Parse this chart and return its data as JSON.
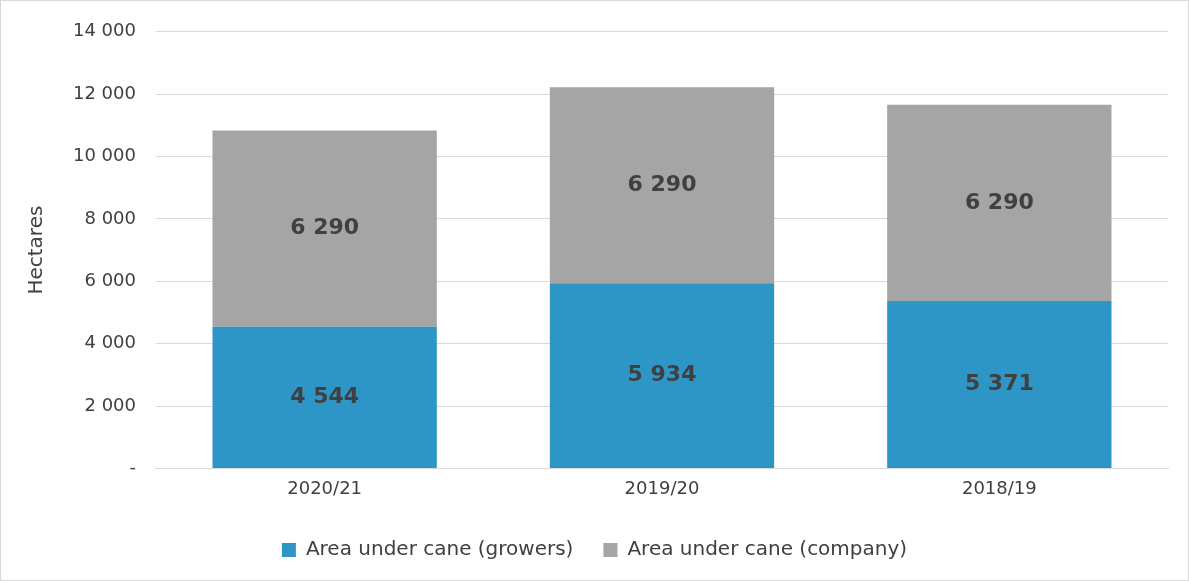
{
  "chart_data": {
    "type": "bar",
    "ylabel": "Hectares",
    "categories": [
      "2020/21",
      "2019/20",
      "2018/19"
    ],
    "series": [
      {
        "name": "Area under cane (growers)",
        "color": "#2e96c6",
        "values": [
          4544,
          5934,
          5371
        ],
        "value_labels": [
          "4 544",
          "5 934",
          "5 371"
        ]
      },
      {
        "name": "Area under cane (company)",
        "color": "#a5a5a5",
        "values": [
          6290,
          6290,
          6290
        ],
        "value_labels": [
          "6 290",
          "6 290",
          "6 290"
        ]
      }
    ],
    "stacked": true,
    "ylim": [
      0,
      14000
    ],
    "yticks": [
      {
        "value": 0,
        "label": "-"
      },
      {
        "value": 2000,
        "label": "2 000"
      },
      {
        "value": 4000,
        "label": "4 000"
      },
      {
        "value": 6000,
        "label": "6 000"
      },
      {
        "value": 8000,
        "label": "8 000"
      },
      {
        "value": 10000,
        "label": "10 000"
      },
      {
        "value": 12000,
        "label": "12 000"
      },
      {
        "value": 14000,
        "label": "14 000"
      }
    ],
    "grid": "y",
    "legend": "bottom"
  }
}
